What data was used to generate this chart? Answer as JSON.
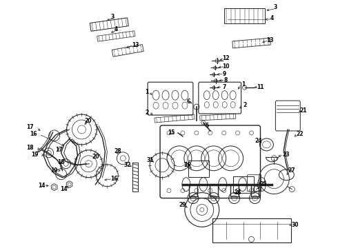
{
  "background_color": "#ffffff",
  "line_color": "#222222",
  "label_color": "#000000",
  "fig_width": 4.9,
  "fig_height": 3.6,
  "dpi": 100,
  "label_fs": 5.5,
  "lw": 0.7
}
